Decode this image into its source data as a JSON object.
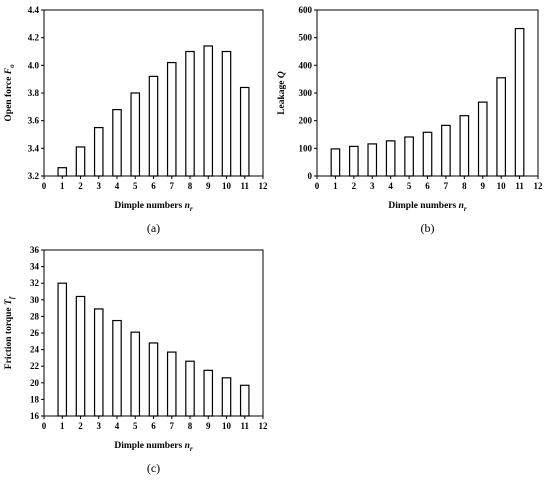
{
  "chart_data": [
    {
      "type": "bar",
      "panel_label": "(a)",
      "x": [
        1,
        2,
        3,
        4,
        5,
        6,
        7,
        8,
        9,
        10,
        11
      ],
      "values": [
        3.26,
        3.41,
        3.55,
        3.68,
        3.8,
        3.92,
        4.02,
        4.1,
        4.14,
        4.1,
        3.84
      ],
      "xlabel": "Dimple numbers ",
      "xlabel_sym": "n",
      "xlabel_sub": "r",
      "ylabel": "Open force ",
      "ylabel_sym": "F",
      "ylabel_sub": "o",
      "xlim": [
        0,
        12
      ],
      "xticks": [
        0,
        1,
        2,
        3,
        4,
        5,
        6,
        7,
        8,
        9,
        10,
        11,
        12
      ],
      "ylim": [
        3.2,
        4.4
      ],
      "yticks": [
        "3.2",
        "3.4",
        "3.6",
        "3.8",
        "4.0",
        "4.2",
        "4.4"
      ],
      "grid": false
    },
    {
      "type": "bar",
      "panel_label": "(b)",
      "x": [
        1,
        2,
        3,
        4,
        5,
        6,
        7,
        8,
        9,
        10,
        11
      ],
      "values": [
        98,
        107,
        116,
        127,
        141,
        158,
        183,
        218,
        267,
        355,
        533
      ],
      "xlabel": "Dimple numbers ",
      "xlabel_sym": "n",
      "xlabel_sub": "r",
      "ylabel": "Leakage ",
      "ylabel_sym": "Q",
      "ylabel_sub": "",
      "xlim": [
        0,
        12
      ],
      "xticks": [
        0,
        1,
        2,
        3,
        4,
        5,
        6,
        7,
        8,
        9,
        10,
        11,
        12
      ],
      "ylim": [
        0,
        600
      ],
      "yticks": [
        "0",
        "100",
        "200",
        "300",
        "400",
        "500",
        "600"
      ],
      "grid": false
    },
    {
      "type": "bar",
      "panel_label": "(c)",
      "x": [
        1,
        2,
        3,
        4,
        5,
        6,
        7,
        8,
        9,
        10,
        11
      ],
      "values": [
        32.0,
        30.4,
        28.9,
        27.5,
        26.1,
        24.8,
        23.7,
        22.6,
        21.5,
        20.6,
        19.7
      ],
      "xlabel": "Dimple numbers ",
      "xlabel_sym": "n",
      "xlabel_sub": "r",
      "ylabel": "Friction torque ",
      "ylabel_sym": "T",
      "ylabel_sub": "f",
      "xlim": [
        0,
        12
      ],
      "xticks": [
        0,
        1,
        2,
        3,
        4,
        5,
        6,
        7,
        8,
        9,
        10,
        11,
        12
      ],
      "ylim": [
        16,
        36
      ],
      "yticks": [
        "16",
        "18",
        "20",
        "22",
        "24",
        "26",
        "28",
        "30",
        "32",
        "34",
        "36"
      ],
      "grid": false
    }
  ]
}
